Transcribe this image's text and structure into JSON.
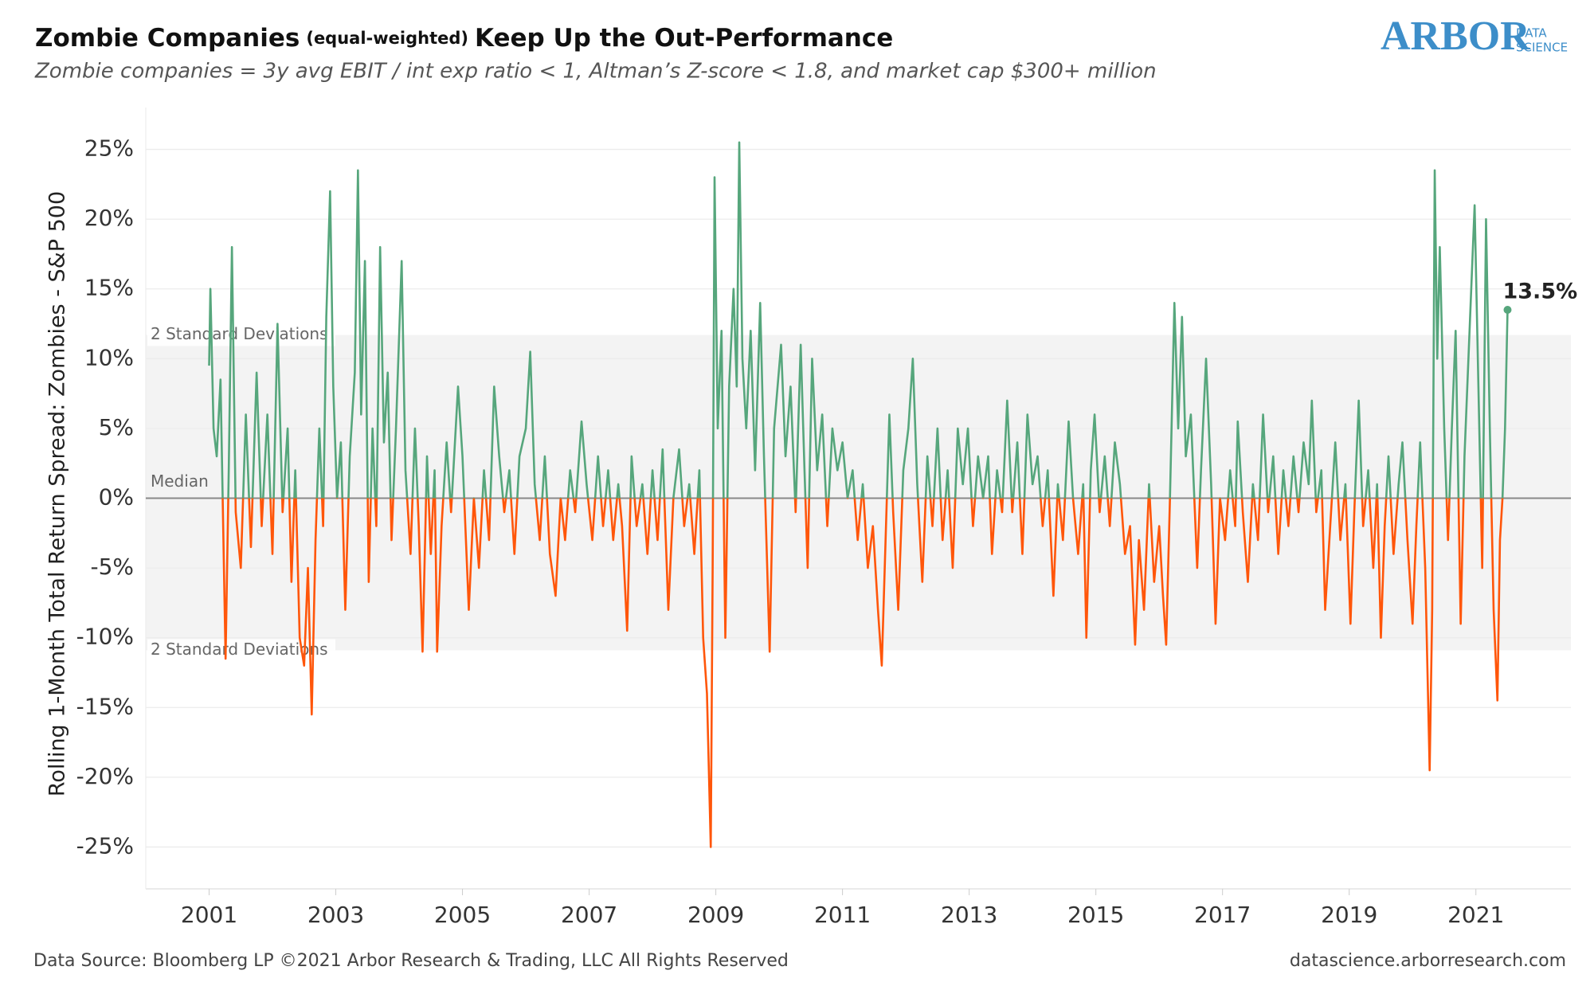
{
  "chart_data": {
    "type": "line",
    "title_parts": [
      "Zombie Companies",
      "(equal-weighted)",
      "Keep Up the Out-Performance"
    ],
    "subtitle": "Zombie companies = 3y avg EBIT / int exp ratio < 1, Altman’s Z-score < 1.8, and market cap $300+ million",
    "logo": {
      "main": "ARBOR",
      "sub1": "DATA",
      "sub2": "SCIENCE"
    },
    "y_label": "Rolling 1-Month Total Return Spread: Zombies - S&P 500",
    "source": "Data Source: Bloomberg LP  ©2021 Arbor Research & Trading, LLC   All Rights Reserved",
    "website": "datascience.arborresearch.com",
    "positive_color": "#56a67c",
    "negative_color": "#ff560a",
    "band": {
      "upper": 11.7,
      "lower": -10.9,
      "label": "2 Standard Deviations",
      "color": "#f3f3f3"
    },
    "median": {
      "value": 0,
      "label": "Median"
    },
    "annotation": "13.5%",
    "xlim": [
      2000,
      2022.5
    ],
    "xticks": [
      2001,
      2003,
      2005,
      2007,
      2009,
      2011,
      2013,
      2015,
      2017,
      2019,
      2021
    ],
    "ylim": [
      -28,
      28
    ],
    "yticks": [
      {
        "value": -25,
        "label": "-25%"
      },
      {
        "value": -20,
        "label": "-20%"
      },
      {
        "value": -15,
        "label": "-15%"
      },
      {
        "value": -10,
        "label": "-10%"
      },
      {
        "value": -5,
        "label": "-5%"
      },
      {
        "value": 0,
        "label": "0%"
      },
      {
        "value": 5,
        "label": "5%"
      },
      {
        "value": 10,
        "label": "10%"
      },
      {
        "value": 15,
        "label": "15%"
      },
      {
        "value": 20,
        "label": "20%"
      },
      {
        "value": 25,
        "label": "25%"
      }
    ],
    "grid": true,
    "x": [
      2001.0,
      2001.02,
      2001.07,
      2001.12,
      2001.18,
      2001.26,
      2001.31,
      2001.36,
      2001.42,
      2001.5,
      2001.58,
      2001.66,
      2001.75,
      2001.83,
      2001.92,
      2002.0,
      2002.08,
      2002.16,
      2002.24,
      2002.3,
      2002.36,
      2002.43,
      2002.5,
      2002.56,
      2002.62,
      2002.68,
      2002.74,
      2002.8,
      2002.85,
      2002.91,
      2002.96,
      2003.02,
      2003.08,
      2003.15,
      2003.22,
      2003.3,
      2003.35,
      2003.4,
      2003.46,
      2003.52,
      2003.58,
      2003.64,
      2003.7,
      2003.76,
      2003.82,
      2003.88,
      2003.95,
      2004.04,
      2004.1,
      2004.18,
      2004.25,
      2004.31,
      2004.37,
      2004.44,
      2004.5,
      2004.56,
      2004.6,
      2004.67,
      2004.75,
      2004.82,
      2004.93,
      2005.0,
      2005.1,
      2005.18,
      2005.26,
      2005.34,
      2005.42,
      2005.5,
      2005.58,
      2005.66,
      2005.74,
      2005.82,
      2005.9,
      2006.0,
      2006.07,
      2006.14,
      2006.22,
      2006.3,
      2006.38,
      2006.47,
      2006.55,
      2006.62,
      2006.7,
      2006.78,
      2006.88,
      2006.96,
      2007.05,
      2007.14,
      2007.22,
      2007.3,
      2007.38,
      2007.46,
      2007.52,
      2007.6,
      2007.67,
      2007.75,
      2007.84,
      2007.92,
      2008.0,
      2008.08,
      2008.16,
      2008.25,
      2008.33,
      2008.42,
      2008.5,
      2008.58,
      2008.66,
      2008.74,
      2008.8,
      2008.86,
      2008.92,
      2008.95,
      2008.98,
      2009.03,
      2009.09,
      2009.15,
      2009.21,
      2009.28,
      2009.33,
      2009.37,
      2009.42,
      2009.48,
      2009.55,
      2009.62,
      2009.7,
      2009.76,
      2009.85,
      2009.92,
      2010.03,
      2010.1,
      2010.18,
      2010.26,
      2010.34,
      2010.4,
      2010.45,
      2010.52,
      2010.6,
      2010.68,
      2010.76,
      2010.84,
      2010.92,
      2011.0,
      2011.08,
      2011.16,
      2011.24,
      2011.32,
      2011.4,
      2011.48,
      2011.56,
      2011.62,
      2011.68,
      2011.74,
      2011.8,
      2011.88,
      2011.96,
      2012.04,
      2012.11,
      2012.18,
      2012.26,
      2012.34,
      2012.42,
      2012.5,
      2012.58,
      2012.66,
      2012.74,
      2012.82,
      2012.9,
      2012.98,
      2013.06,
      2013.14,
      2013.22,
      2013.3,
      2013.36,
      2013.44,
      2013.52,
      2013.6,
      2013.68,
      2013.76,
      2013.84,
      2013.92,
      2014.0,
      2014.08,
      2014.16,
      2014.24,
      2014.33,
      2014.4,
      2014.48,
      2014.57,
      2014.64,
      2014.72,
      2014.8,
      2014.85,
      2014.92,
      2014.98,
      2015.06,
      2015.14,
      2015.22,
      2015.3,
      2015.38,
      2015.46,
      2015.54,
      2015.62,
      2015.68,
      2015.76,
      2015.84,
      2015.92,
      2016.0,
      2016.06,
      2016.11,
      2016.17,
      2016.24,
      2016.3,
      2016.36,
      2016.42,
      2016.5,
      2016.6,
      2016.66,
      2016.74,
      2016.82,
      2016.89,
      2016.96,
      2017.04,
      2017.12,
      2017.2,
      2017.24,
      2017.32,
      2017.4,
      2017.48,
      2017.56,
      2017.64,
      2017.72,
      2017.8,
      2017.88,
      2017.96,
      2018.04,
      2018.12,
      2018.2,
      2018.28,
      2018.36,
      2018.41,
      2018.48,
      2018.56,
      2018.62,
      2018.7,
      2018.78,
      2018.86,
      2018.94,
      2019.02,
      2019.08,
      2019.15,
      2019.22,
      2019.3,
      2019.38,
      2019.44,
      2019.5,
      2019.56,
      2019.62,
      2019.7,
      2019.78,
      2019.84,
      2019.92,
      2020.0,
      2020.06,
      2020.12,
      2020.2,
      2020.27,
      2020.31,
      2020.35,
      2020.39,
      2020.43,
      2020.5,
      2020.56,
      2020.62,
      2020.68,
      2020.76,
      2020.82,
      2020.9,
      2020.98,
      2021.04,
      2021.1,
      2021.16,
      2021.22,
      2021.28,
      2021.34,
      2021.38,
      2021.42,
      2021.46,
      2021.5
    ],
    "values": [
      9.5,
      15,
      5,
      3,
      8.5,
      -11.5,
      2,
      18,
      -1,
      -5,
      6,
      -3.5,
      9,
      -2,
      6,
      -4,
      12.5,
      -1,
      5,
      -6,
      2,
      -10,
      -12,
      -5,
      -15.5,
      -3,
      5,
      -2,
      13,
      22,
      8,
      0,
      4,
      -8,
      3,
      9,
      23.5,
      6,
      17,
      -6,
      5,
      -2,
      18,
      4,
      9,
      -3,
      5,
      17,
      2,
      -4,
      5,
      -2,
      -11,
      3,
      -4,
      2,
      -11,
      -2,
      4,
      -1,
      8,
      3,
      -8,
      0,
      -5,
      2,
      -3,
      8,
      3,
      -1,
      2,
      -4,
      3,
      5,
      10.5,
      1,
      -3,
      3,
      -4,
      -7,
      0,
      -3,
      2,
      -1,
      5.5,
      1,
      -3,
      3,
      -2,
      2,
      -3,
      1,
      -2,
      -9.5,
      3,
      -2,
      1,
      -4,
      2,
      -3,
      3.5,
      -8,
      0,
      3.5,
      -2,
      1,
      -4,
      2,
      -10,
      -14,
      -25,
      -5,
      23,
      5,
      12,
      -10,
      8,
      15,
      8,
      25.5,
      10,
      5,
      12,
      2,
      14,
      3,
      -11,
      5,
      11,
      3,
      8,
      -1,
      11,
      2,
      -5,
      10,
      2,
      6,
      -2,
      5,
      2,
      4,
      0,
      2,
      -3,
      1,
      -5,
      -2,
      -8,
      -12,
      -3,
      6,
      -1,
      -8,
      2,
      5,
      10,
      1,
      -6,
      3,
      -2,
      5,
      -3,
      2,
      -5,
      5,
      1,
      5,
      -2,
      3,
      0,
      3,
      -4,
      2,
      -1,
      7,
      -1,
      4,
      -4,
      6,
      1,
      3,
      -2,
      2,
      -7,
      1,
      -3,
      5.5,
      0,
      -4,
      1,
      -10,
      2,
      6,
      -1,
      3,
      -2,
      4,
      1,
      -4,
      -2,
      -10.5,
      -3,
      -8,
      1,
      -6,
      -2,
      -7,
      -10.5,
      0,
      14,
      5,
      13,
      3,
      6,
      -5,
      2,
      10,
      1,
      -9,
      0,
      -3,
      2,
      -2,
      5.5,
      -1,
      -6,
      1,
      -3,
      6,
      -1,
      3,
      -4,
      2,
      -2,
      3,
      -1,
      4,
      1,
      7,
      -1,
      2,
      -8,
      -2,
      4,
      -3,
      1,
      -9,
      -1,
      7,
      -2,
      2,
      -5,
      1,
      -10,
      -2,
      3,
      -4,
      1,
      4,
      -3,
      -9,
      -2,
      4,
      -5,
      -19.5,
      -8,
      23.5,
      10,
      18,
      5,
      -3,
      5,
      12,
      -9,
      3,
      12,
      21,
      8,
      -5,
      20,
      5,
      -8,
      -14.5,
      -3,
      0,
      5,
      13.5
    ]
  }
}
